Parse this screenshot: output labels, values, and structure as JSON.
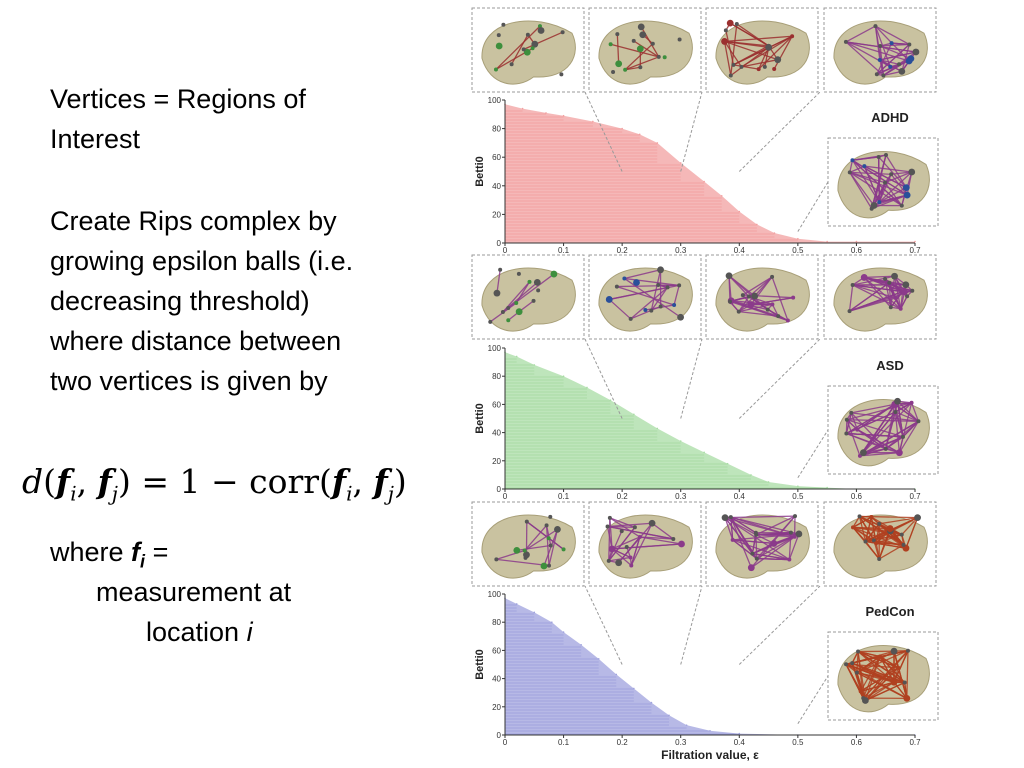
{
  "text": {
    "line1": "Vertices = Regions of Interest",
    "line2": "Create Rips complex by growing epsilon balls (i.e. decreasing threshold) where distance between two vertices is given by",
    "formula_d": "d",
    "formula_fi": "f",
    "formula_i": "i",
    "formula_fj": "f",
    "formula_j": "j",
    "formula_mid": " = 1 − corr(",
    "where_word": "where ",
    "where_f": "f",
    "where_i": "i",
    "where_eq": " =",
    "measurement": "measurement at",
    "location_word": "location ",
    "location_i": "i"
  },
  "chart_data": [
    {
      "type": "area",
      "group": "ADHD",
      "ylabel": "Betti0",
      "xlim": [
        0,
        0.7
      ],
      "ylim": [
        0,
        100
      ],
      "yticks": [
        "0",
        "20",
        "40",
        "60",
        "80",
        "100"
      ],
      "xticks": [
        "0",
        "0.1",
        "0.2",
        "0.3",
        "0.4",
        "0.5",
        "0.6",
        "0.7"
      ],
      "color": "#f2a0a0",
      "x": [
        0,
        0.03,
        0.07,
        0.1,
        0.15,
        0.2,
        0.23,
        0.26,
        0.3,
        0.34,
        0.37,
        0.4,
        0.43,
        0.46,
        0.5,
        0.55,
        0.6,
        0.7
      ],
      "y": [
        97,
        94,
        91,
        89,
        85,
        80,
        76,
        70,
        56,
        43,
        33,
        22,
        13,
        7,
        3,
        1,
        1,
        1
      ]
    },
    {
      "type": "area",
      "group": "ASD",
      "ylabel": "Betti0",
      "xlim": [
        0,
        0.7
      ],
      "ylim": [
        0,
        100
      ],
      "yticks": [
        "0",
        "20",
        "40",
        "60",
        "80",
        "100"
      ],
      "xticks": [
        "0",
        "0.1",
        "0.2",
        "0.3",
        "0.4",
        "0.5",
        "0.6",
        "0.7"
      ],
      "color": "#a8dca4",
      "x": [
        0,
        0.02,
        0.05,
        0.1,
        0.14,
        0.18,
        0.22,
        0.26,
        0.3,
        0.34,
        0.38,
        0.42,
        0.45,
        0.5,
        0.55,
        0.6,
        0.7
      ],
      "y": [
        97,
        94,
        88,
        80,
        72,
        63,
        53,
        43,
        34,
        26,
        18,
        10,
        5,
        2,
        1,
        0,
        0
      ]
    },
    {
      "type": "area",
      "group": "PedCon",
      "ylabel": "Betti0",
      "xlabel": "Filtration value, ε",
      "xlim": [
        0,
        0.7
      ],
      "ylim": [
        0,
        100
      ],
      "yticks": [
        "0",
        "20",
        "40",
        "60",
        "80",
        "100"
      ],
      "xticks": [
        "0",
        "0.1",
        "0.2",
        "0.3",
        "0.4",
        "0.5",
        "0.6",
        "0.7"
      ],
      "color": "#9fa2dd",
      "x": [
        0,
        0.02,
        0.05,
        0.08,
        0.1,
        0.13,
        0.16,
        0.19,
        0.22,
        0.25,
        0.28,
        0.31,
        0.35,
        0.4,
        0.5,
        0.6,
        0.7
      ],
      "y": [
        97,
        93,
        87,
        80,
        73,
        64,
        54,
        43,
        33,
        23,
        14,
        7,
        3,
        1,
        0,
        0,
        0
      ]
    }
  ],
  "brain_colors": [
    "#c9c2a0",
    "#3d8f3d",
    "#2a4f9a",
    "#9b2f2f",
    "#8b3a8b",
    "#b04020"
  ]
}
